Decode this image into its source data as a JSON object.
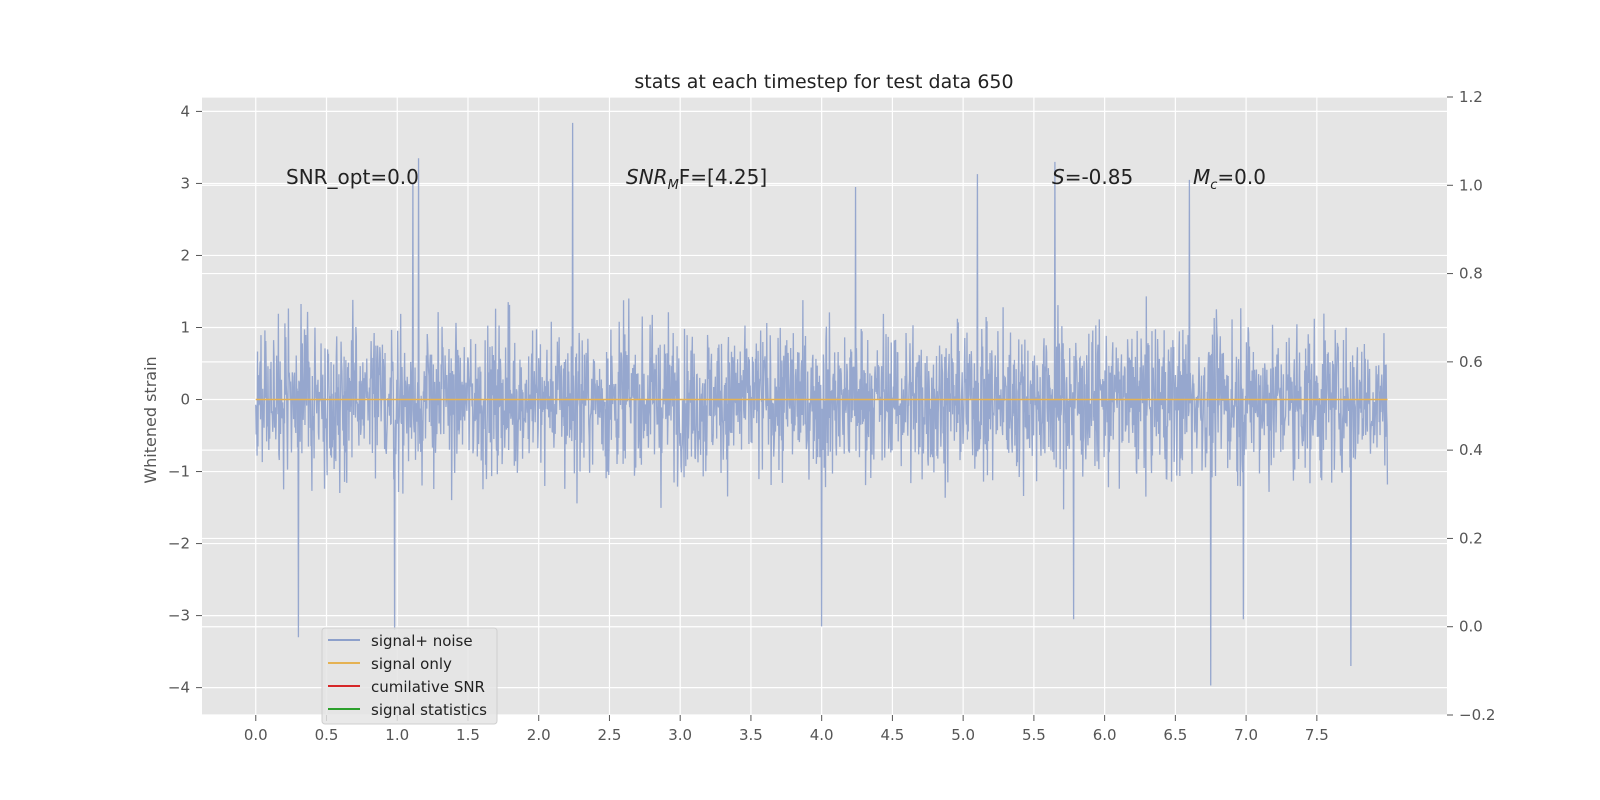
{
  "chart_data": {
    "type": "line",
    "title": "stats at each timestep for test data 650",
    "ylabel": "Whitened strain",
    "xlim": [
      -0.38,
      8.42
    ],
    "ylim": [
      -4.38,
      4.2
    ],
    "ylim_right": [
      -0.2,
      1.2
    ],
    "x_ticks": [
      "0.0",
      "0.5",
      "1.0",
      "1.5",
      "2.0",
      "2.5",
      "3.0",
      "3.5",
      "4.0",
      "4.5",
      "5.0",
      "5.5",
      "6.0",
      "6.5",
      "7.0",
      "7.5"
    ],
    "y_ticks_left": [
      "4",
      "3",
      "2",
      "1",
      "0",
      "−1",
      "−2",
      "−3",
      "−4"
    ],
    "y_ticks_right": [
      "1.2",
      "1.0",
      "0.8",
      "0.6",
      "0.4",
      "0.2",
      "0.0",
      "−0.2"
    ],
    "grid": true,
    "legend_position": "lower-left",
    "annotations": {
      "snr_opt": "SNR_opt=0.0",
      "snr_mf_main": "SNR",
      "snr_mf_sub": "M",
      "snr_mf_rest": "F=[4.25]",
      "s_main": "S",
      "s_rest": "=-0.85",
      "mc_main": "M",
      "mc_sub": "c",
      "mc_rest": "=0.0"
    },
    "series": [
      {
        "name": "signal+ noise",
        "color": "#8da0cb",
        "x_range": [
          0.0,
          7.999
        ],
        "envelope": "dense whitened noise, amplitude mostly within ±2, extremes near 3.84 (t≈2.24) and -3.97 (t≈6.75)",
        "peaks": [
          [
            0.3,
            -3.3
          ],
          [
            0.98,
            -3.2
          ],
          [
            1.11,
            3.0
          ],
          [
            1.15,
            3.35
          ],
          [
            2.24,
            3.84
          ],
          [
            4.0,
            -3.15
          ],
          [
            4.24,
            2.95
          ],
          [
            5.1,
            3.13
          ],
          [
            5.65,
            3.3
          ],
          [
            5.78,
            -3.05
          ],
          [
            6.6,
            3.05
          ],
          [
            6.75,
            -3.97
          ],
          [
            6.98,
            -3.05
          ],
          [
            7.74,
            -3.7
          ]
        ]
      },
      {
        "name": "signal only",
        "color": "#e5b253",
        "x": [
          0.0,
          8.0
        ],
        "y": [
          0.0,
          0.0
        ]
      },
      {
        "name": "cumilative SNR",
        "color": "#d62728",
        "x": [],
        "y": []
      },
      {
        "name": "signal statistics",
        "color": "#2ca02c",
        "x": [],
        "y": []
      }
    ]
  }
}
